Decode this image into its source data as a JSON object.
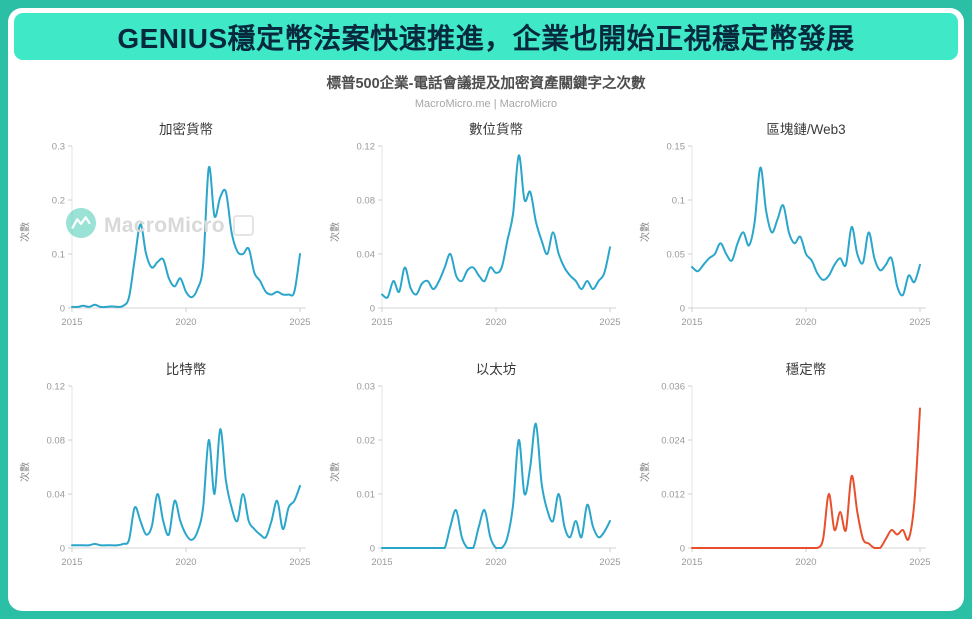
{
  "banner": {
    "title": "GENIUS穩定幣法案快速推進，企業也開始正視穩定幣發展"
  },
  "header": {
    "subtitle": "標普500企業-電話會議提及加密資產關鍵字之次數",
    "attribution": "MacroMicro.me | MacroMicro"
  },
  "watermark": {
    "text": "MacroMicro",
    "logo": "macromicro-logo"
  },
  "colors": {
    "page_bg": "#2bbfa5",
    "banner_bg": "#3fe9c7",
    "banner_text": "#07293d",
    "line_blue": "#2ba6cb",
    "line_red": "#e8502d",
    "axis": "#d5d5d5",
    "tick_text": "#999999"
  },
  "chart_data": [
    {
      "type": "line",
      "title": "加密貨幣",
      "ylabel": "次數",
      "color": "#2ba6cb",
      "x_start": 2015,
      "x_step": 0.25,
      "x_range": [
        2015,
        2025
      ],
      "xticks": [
        2015,
        2020,
        2025
      ],
      "yticks": [
        0,
        0.1,
        0.2,
        0.3
      ],
      "ytick_labels": [
        "0",
        "0.1",
        "0.2",
        "0.3"
      ],
      "ymax": 0.3,
      "values": [
        0.002,
        0.002,
        0.004,
        0.002,
        0.006,
        0.002,
        0.002,
        0.003,
        0.002,
        0.004,
        0.02,
        0.09,
        0.155,
        0.1,
        0.075,
        0.085,
        0.09,
        0.055,
        0.04,
        0.055,
        0.03,
        0.02,
        0.035,
        0.08,
        0.26,
        0.17,
        0.205,
        0.215,
        0.14,
        0.105,
        0.1,
        0.11,
        0.065,
        0.05,
        0.03,
        0.025,
        0.03,
        0.025,
        0.025,
        0.03,
        0.1
      ]
    },
    {
      "type": "line",
      "title": "數位貨幣",
      "ylabel": "次數",
      "color": "#2ba6cb",
      "x_start": 2015,
      "x_step": 0.25,
      "x_range": [
        2015,
        2025
      ],
      "xticks": [
        2015,
        2020,
        2025
      ],
      "yticks": [
        0,
        0.04,
        0.08,
        0.12
      ],
      "ytick_labels": [
        "0",
        "0.04",
        "0.08",
        "0.12"
      ],
      "ymax": 0.12,
      "values": [
        0.01,
        0.008,
        0.02,
        0.012,
        0.03,
        0.015,
        0.01,
        0.018,
        0.02,
        0.014,
        0.02,
        0.03,
        0.04,
        0.024,
        0.02,
        0.028,
        0.03,
        0.024,
        0.02,
        0.03,
        0.026,
        0.03,
        0.05,
        0.07,
        0.113,
        0.08,
        0.086,
        0.064,
        0.05,
        0.04,
        0.056,
        0.04,
        0.03,
        0.024,
        0.02,
        0.014,
        0.02,
        0.014,
        0.02,
        0.026,
        0.045
      ]
    },
    {
      "type": "line",
      "title": "區塊鏈/Web3",
      "ylabel": "次數",
      "color": "#2ba6cb",
      "x_start": 2015,
      "x_step": 0.25,
      "x_range": [
        2015,
        2025
      ],
      "xticks": [
        2015,
        2020,
        2025
      ],
      "yticks": [
        0,
        0.05,
        0.1,
        0.15
      ],
      "ytick_labels": [
        "0",
        "0.05",
        "0.1",
        "0.15"
      ],
      "ymax": 0.15,
      "values": [
        0.038,
        0.034,
        0.04,
        0.046,
        0.05,
        0.06,
        0.05,
        0.044,
        0.06,
        0.07,
        0.058,
        0.08,
        0.13,
        0.09,
        0.07,
        0.082,
        0.095,
        0.07,
        0.06,
        0.066,
        0.05,
        0.044,
        0.032,
        0.026,
        0.03,
        0.04,
        0.046,
        0.04,
        0.075,
        0.05,
        0.042,
        0.07,
        0.046,
        0.035,
        0.04,
        0.046,
        0.02,
        0.012,
        0.03,
        0.024,
        0.04
      ]
    },
    {
      "type": "line",
      "title": "比特幣",
      "ylabel": "次數",
      "color": "#2ba6cb",
      "x_start": 2015,
      "x_step": 0.25,
      "x_range": [
        2015,
        2025
      ],
      "xticks": [
        2015,
        2020,
        2025
      ],
      "yticks": [
        0,
        0.04,
        0.08,
        0.12
      ],
      "ytick_labels": [
        "0",
        "0.04",
        "0.08",
        "0.12"
      ],
      "ymax": 0.12,
      "values": [
        0.002,
        0.002,
        0.002,
        0.002,
        0.003,
        0.002,
        0.002,
        0.002,
        0.002,
        0.003,
        0.006,
        0.03,
        0.02,
        0.01,
        0.016,
        0.04,
        0.02,
        0.01,
        0.035,
        0.02,
        0.01,
        0.006,
        0.012,
        0.03,
        0.08,
        0.04,
        0.088,
        0.05,
        0.03,
        0.02,
        0.04,
        0.02,
        0.014,
        0.01,
        0.008,
        0.02,
        0.035,
        0.014,
        0.03,
        0.035,
        0.046
      ]
    },
    {
      "type": "line",
      "title": "以太坊",
      "ylabel": "次數",
      "color": "#2ba6cb",
      "x_start": 2015,
      "x_step": 0.25,
      "x_range": [
        2015,
        2025
      ],
      "xticks": [
        2015,
        2020,
        2025
      ],
      "yticks": [
        0,
        0.01,
        0.02,
        0.03
      ],
      "ytick_labels": [
        "0",
        "0.01",
        "0.02",
        "0.03"
      ],
      "ymax": 0.03,
      "values": [
        0,
        0,
        0,
        0,
        0,
        0,
        0,
        0,
        0,
        0,
        0,
        0,
        0.004,
        0.007,
        0.002,
        0,
        0,
        0.004,
        0.007,
        0.002,
        0,
        0,
        0.002,
        0.008,
        0.02,
        0.01,
        0.015,
        0.023,
        0.012,
        0.007,
        0.005,
        0.01,
        0.004,
        0.002,
        0.005,
        0.002,
        0.008,
        0.004,
        0.002,
        0.003,
        0.005
      ]
    },
    {
      "type": "line",
      "title": "穩定幣",
      "ylabel": "次數",
      "color": "#e8502d",
      "x_start": 2015,
      "x_step": 0.25,
      "x_range": [
        2015,
        2025
      ],
      "xticks": [
        2015,
        2020,
        2025
      ],
      "yticks": [
        0,
        0.012,
        0.024,
        0.036
      ],
      "ytick_labels": [
        "0",
        "0.012",
        "0.024",
        "0.036"
      ],
      "ymax": 0.036,
      "values": [
        0,
        0,
        0,
        0,
        0,
        0,
        0,
        0,
        0,
        0,
        0,
        0,
        0,
        0,
        0,
        0,
        0,
        0,
        0,
        0,
        0,
        0,
        0,
        0.002,
        0.012,
        0.004,
        0.008,
        0.004,
        0.016,
        0.008,
        0.002,
        0.001,
        0,
        0,
        0.002,
        0.004,
        0.003,
        0.004,
        0.002,
        0.01,
        0.031
      ]
    }
  ]
}
